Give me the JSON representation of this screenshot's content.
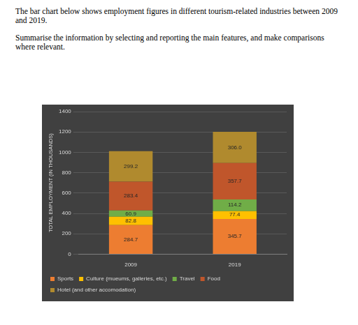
{
  "text": {
    "paragraphs": [
      "The bar chart below shows employment figures in different tourism-related industries between 2009 and 2019.",
      "Summarise the information by selecting and reporting the main features, and make comparisons where relevant."
    ]
  },
  "chart_data": {
    "type": "bar",
    "stacked": true,
    "data_labels": true,
    "grid": true,
    "legend": "bottom",
    "y_label": "TOTAL EMPLOYMENT (IN THOUSANDS)",
    "categories": [
      "2009",
      "2019"
    ],
    "ylim": [
      0,
      1400
    ],
    "yticks": [
      0,
      200,
      400,
      600,
      800,
      1000,
      1200,
      1400
    ],
    "series": [
      {
        "name": "Sports",
        "color": "#ed7d31",
        "values": [
          284.7,
          345.7
        ]
      },
      {
        "name": "Culture (mueums, galleries, etc.)",
        "color": "#ffc000",
        "values": [
          82.8,
          77.4
        ]
      },
      {
        "name": "Travel",
        "color": "#70ad47",
        "values": [
          60.9,
          114.2
        ]
      },
      {
        "name": "Food",
        "color": "#c0562b",
        "values": [
          283.4,
          357.7
        ]
      },
      {
        "name": "Hotel (and other accomodation)",
        "color": "#b08a2e",
        "values": [
          299.2,
          306.0
        ],
        "value_labels": [
          "299.2",
          "306.0"
        ]
      }
    ]
  }
}
